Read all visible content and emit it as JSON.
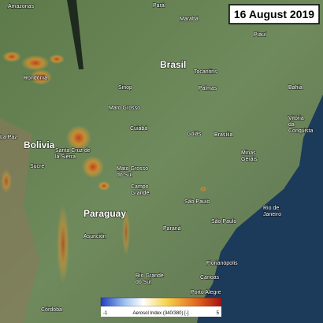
{
  "date": "16 August 2019",
  "places": [
    "Amazonas",
    "Pará",
    "Marabá",
    "Piauí",
    "Rondônia",
    "Brasil",
    "Tocantins",
    "Palmas",
    "Bahia",
    "Sinop",
    "Mato Grosso",
    "Cuiabá",
    "Goiás",
    "Brasília",
    "Bolivia",
    "Santa Cruz de la Sierra",
    "Sucre",
    "La Paz",
    "Minas Gerais",
    "Mato Grosso do Sul",
    "Campo Grande",
    "Paraguay",
    "São Paulo",
    "São Paulo",
    "Rio de Janeiro",
    "Asunción",
    "Paraná",
    "Florianópolis",
    "Rio Grande do Sul",
    "Canoas",
    "Porto Alegre",
    "Córdoba",
    "Vitória da Conquista"
  ],
  "colorbar": {
    "label": "Aerosol Index (340/380) [-]",
    "min": "-1",
    "max": "5"
  }
}
